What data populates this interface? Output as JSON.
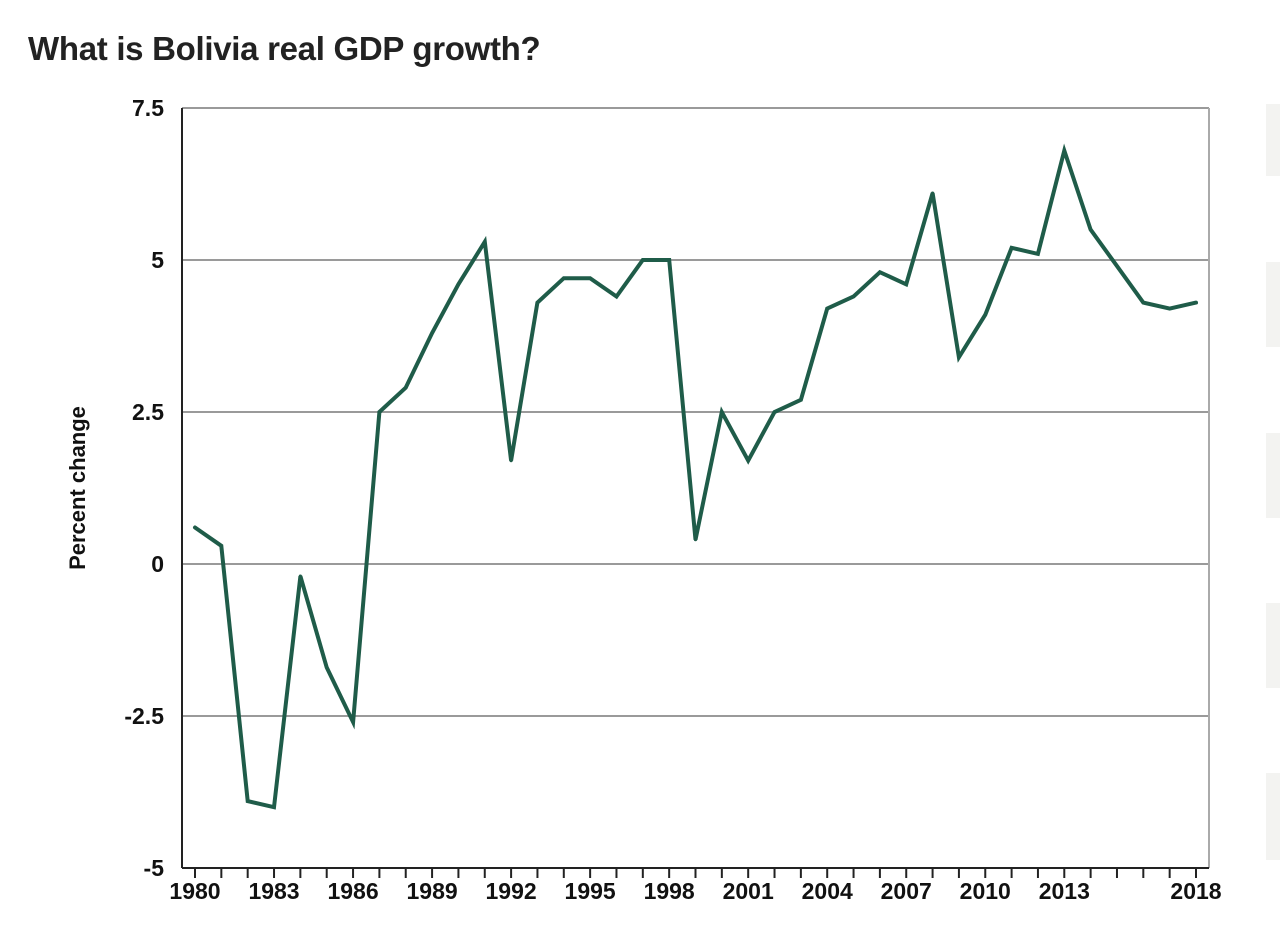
{
  "chart_data": {
    "type": "line",
    "title": "What is Bolivia real GDP growth?",
    "xlabel": "",
    "ylabel": "Percent change",
    "xlim": [
      1980,
      2018
    ],
    "ylim": [
      -5,
      7.5
    ],
    "y_ticks": [
      7.5,
      5,
      2.5,
      0,
      -2.5,
      -5
    ],
    "y_tick_labels": [
      "7.5",
      "5",
      "2.5",
      "0",
      "-2.5",
      "-5"
    ],
    "x_tick_labels": [
      "1980",
      "1983",
      "1986",
      "1989",
      "1992",
      "1995",
      "1998",
      "2001",
      "2004",
      "2007",
      "2010",
      "2013",
      "2018"
    ],
    "grid": true,
    "legend": "none",
    "line_color": "#1f5c49",
    "series": [
      {
        "x": [
          1980,
          1981,
          1982,
          1983,
          1984,
          1985,
          1986,
          1987,
          1988,
          1989,
          1990,
          1991,
          1992,
          1993,
          1994,
          1995,
          1996,
          1997,
          1998,
          1999,
          2000,
          2001,
          2002,
          2003,
          2004,
          2005,
          2006,
          2007,
          2008,
          2009,
          2010,
          2011,
          2012,
          2013,
          2014,
          2015,
          2016,
          2017,
          2018
        ],
        "values": [
          0.6,
          0.3,
          -3.9,
          -4.0,
          -0.2,
          -1.7,
          -2.6,
          2.5,
          2.9,
          3.8,
          4.6,
          5.3,
          1.7,
          4.3,
          4.7,
          4.7,
          4.4,
          5.0,
          5.0,
          0.4,
          2.5,
          1.7,
          2.5,
          2.7,
          4.2,
          4.4,
          4.8,
          4.6,
          6.1,
          3.4,
          4.1,
          5.2,
          5.1,
          6.8,
          5.5,
          4.9,
          4.3,
          4.2,
          4.3
        ]
      }
    ]
  }
}
